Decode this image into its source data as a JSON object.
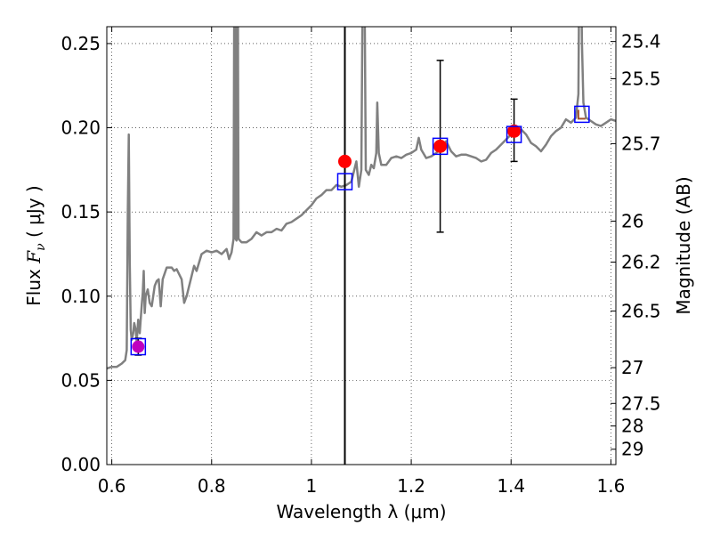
{
  "chart_data": {
    "type": "line",
    "title": "",
    "xlabel": "Wavelength  λ (μm)",
    "ylabel": "Flux  F_ν  ( μJy )",
    "ylabel_display": {
      "prefix": "Flux  ",
      "var": "F",
      "sub": "ν",
      "suffix": "  ( μJy )"
    },
    "y2label": "Magnitude (AB)",
    "xlim": [
      0.59,
      1.61
    ],
    "ylim": [
      0.0,
      0.26
    ],
    "grid": true,
    "x_ticks": [
      {
        "value": 0.6,
        "label": "0.6"
      },
      {
        "value": 0.8,
        "label": "0.8"
      },
      {
        "value": 1.0,
        "label": "1"
      },
      {
        "value": 1.2,
        "label": "1.2"
      },
      {
        "value": 1.4,
        "label": "1.4"
      },
      {
        "value": 1.6,
        "label": "1.6"
      }
    ],
    "y_ticks": [
      {
        "value": 0.0,
        "label": "0.00"
      },
      {
        "value": 0.05,
        "label": "0.05"
      },
      {
        "value": 0.1,
        "label": "0.10"
      },
      {
        "value": 0.15,
        "label": "0.15"
      },
      {
        "value": 0.2,
        "label": "0.20"
      },
      {
        "value": 0.25,
        "label": "0.25"
      }
    ],
    "y2_ticks": [
      {
        "mag": 25.4,
        "label": "25.4"
      },
      {
        "mag": 25.5,
        "label": "25.5"
      },
      {
        "mag": 25.7,
        "label": "25.7"
      },
      {
        "mag": 26.0,
        "label": "26"
      },
      {
        "mag": 26.2,
        "label": "26.2"
      },
      {
        "mag": 26.5,
        "label": "26.5"
      },
      {
        "mag": 27.0,
        "label": "27"
      },
      {
        "mag": 27.5,
        "label": "27.5"
      },
      {
        "mag": 28.0,
        "label": "28"
      },
      {
        "mag": 29.0,
        "label": "29"
      }
    ],
    "vertical_line_x": 1.067,
    "spectrum": {
      "color": "#808080",
      "points": [
        [
          0.59,
          0.057
        ],
        [
          0.6,
          0.058
        ],
        [
          0.61,
          0.058
        ],
        [
          0.62,
          0.06
        ],
        [
          0.627,
          0.062
        ],
        [
          0.63,
          0.068
        ],
        [
          0.632,
          0.15
        ],
        [
          0.634,
          0.196
        ],
        [
          0.636,
          0.12
        ],
        [
          0.638,
          0.08
        ],
        [
          0.64,
          0.074
        ],
        [
          0.643,
          0.078
        ],
        [
          0.645,
          0.084
        ],
        [
          0.648,
          0.08
        ],
        [
          0.65,
          0.073
        ],
        [
          0.653,
          0.086
        ],
        [
          0.656,
          0.078
        ],
        [
          0.66,
          0.095
        ],
        [
          0.662,
          0.102
        ],
        [
          0.664,
          0.115
        ],
        [
          0.666,
          0.09
        ],
        [
          0.668,
          0.1
        ],
        [
          0.672,
          0.104
        ],
        [
          0.676,
          0.096
        ],
        [
          0.68,
          0.094
        ],
        [
          0.686,
          0.106
        ],
        [
          0.69,
          0.109
        ],
        [
          0.694,
          0.11
        ],
        [
          0.698,
          0.094
        ],
        [
          0.702,
          0.11
        ],
        [
          0.71,
          0.117
        ],
        [
          0.72,
          0.117
        ],
        [
          0.725,
          0.115
        ],
        [
          0.73,
          0.116
        ],
        [
          0.74,
          0.11
        ],
        [
          0.745,
          0.096
        ],
        [
          0.75,
          0.1
        ],
        [
          0.76,
          0.112
        ],
        [
          0.765,
          0.118
        ],
        [
          0.77,
          0.115
        ],
        [
          0.78,
          0.125
        ],
        [
          0.79,
          0.127
        ],
        [
          0.8,
          0.126
        ],
        [
          0.81,
          0.127
        ],
        [
          0.82,
          0.125
        ],
        [
          0.83,
          0.128
        ],
        [
          0.835,
          0.122
        ],
        [
          0.84,
          0.126
        ],
        [
          0.844,
          0.134
        ],
        [
          0.846,
          0.35
        ],
        [
          0.848,
          0.134
        ],
        [
          0.85,
          0.133
        ],
        [
          0.852,
          0.35
        ],
        [
          0.854,
          0.134
        ],
        [
          0.86,
          0.132
        ],
        [
          0.87,
          0.132
        ],
        [
          0.88,
          0.134
        ],
        [
          0.89,
          0.138
        ],
        [
          0.9,
          0.136
        ],
        [
          0.91,
          0.138
        ],
        [
          0.92,
          0.138
        ],
        [
          0.93,
          0.14
        ],
        [
          0.94,
          0.139
        ],
        [
          0.95,
          0.143
        ],
        [
          0.96,
          0.144
        ],
        [
          0.97,
          0.146
        ],
        [
          0.98,
          0.148
        ],
        [
          0.99,
          0.151
        ],
        [
          1.0,
          0.154
        ],
        [
          1.01,
          0.158
        ],
        [
          1.02,
          0.16
        ],
        [
          1.03,
          0.163
        ],
        [
          1.04,
          0.163
        ],
        [
          1.05,
          0.166
        ],
        [
          1.06,
          0.165
        ],
        [
          1.07,
          0.166
        ],
        [
          1.08,
          0.168
        ],
        [
          1.09,
          0.18
        ],
        [
          1.095,
          0.165
        ],
        [
          1.1,
          0.175
        ],
        [
          1.103,
          0.3
        ],
        [
          1.106,
          0.3
        ],
        [
          1.109,
          0.175
        ],
        [
          1.115,
          0.172
        ],
        [
          1.12,
          0.178
        ],
        [
          1.125,
          0.176
        ],
        [
          1.13,
          0.185
        ],
        [
          1.132,
          0.215
        ],
        [
          1.135,
          0.185
        ],
        [
          1.14,
          0.178
        ],
        [
          1.15,
          0.178
        ],
        [
          1.16,
          0.182
        ],
        [
          1.17,
          0.183
        ],
        [
          1.18,
          0.182
        ],
        [
          1.19,
          0.184
        ],
        [
          1.2,
          0.185
        ],
        [
          1.21,
          0.187
        ],
        [
          1.215,
          0.194
        ],
        [
          1.22,
          0.187
        ],
        [
          1.23,
          0.182
        ],
        [
          1.24,
          0.183
        ],
        [
          1.25,
          0.185
        ],
        [
          1.26,
          0.188
        ],
        [
          1.27,
          0.192
        ],
        [
          1.28,
          0.186
        ],
        [
          1.29,
          0.183
        ],
        [
          1.3,
          0.184
        ],
        [
          1.31,
          0.184
        ],
        [
          1.32,
          0.183
        ],
        [
          1.33,
          0.182
        ],
        [
          1.34,
          0.18
        ],
        [
          1.35,
          0.181
        ],
        [
          1.36,
          0.185
        ],
        [
          1.37,
          0.187
        ],
        [
          1.38,
          0.19
        ],
        [
          1.39,
          0.193
        ],
        [
          1.4,
          0.196
        ],
        [
          1.41,
          0.198
        ],
        [
          1.42,
          0.199
        ],
        [
          1.43,
          0.196
        ],
        [
          1.44,
          0.191
        ],
        [
          1.45,
          0.189
        ],
        [
          1.46,
          0.186
        ],
        [
          1.47,
          0.19
        ],
        [
          1.48,
          0.195
        ],
        [
          1.49,
          0.198
        ],
        [
          1.5,
          0.2
        ],
        [
          1.51,
          0.205
        ],
        [
          1.52,
          0.203
        ],
        [
          1.53,
          0.206
        ],
        [
          1.535,
          0.22
        ],
        [
          1.538,
          0.35
        ],
        [
          1.542,
          0.25
        ],
        [
          1.545,
          0.215
        ],
        [
          1.55,
          0.206
        ],
        [
          1.56,
          0.204
        ],
        [
          1.57,
          0.202
        ],
        [
          1.58,
          0.201
        ],
        [
          1.59,
          0.203
        ],
        [
          1.6,
          0.205
        ],
        [
          1.61,
          0.204
        ]
      ]
    },
    "model_points": {
      "marker": "open-square",
      "color": "#0000ff",
      "points": [
        {
          "x": 0.653,
          "y": 0.07
        },
        {
          "x": 1.067,
          "y": 0.168
        },
        {
          "x": 1.258,
          "y": 0.189
        },
        {
          "x": 1.406,
          "y": 0.196
        },
        {
          "x": 1.542,
          "y": 0.208
        }
      ]
    },
    "observed_points": {
      "marker": "filled-circle",
      "color": "#ff0000",
      "points": [
        {
          "x": 1.067,
          "y": 0.18
        },
        {
          "x": 1.258,
          "y": 0.189
        },
        {
          "x": 1.406,
          "y": 0.198
        }
      ]
    },
    "magenta_points": {
      "marker": "filled-circle",
      "color": "#bf00bf",
      "points": [
        {
          "x": 0.653,
          "y": 0.07
        }
      ]
    },
    "error_bars": [
      {
        "x": 0.653,
        "lo": 0.065,
        "hi": 0.075
      },
      {
        "x": 1.258,
        "lo": 0.138,
        "hi": 0.24
      },
      {
        "x": 1.406,
        "lo": 0.18,
        "hi": 0.217
      }
    ],
    "upper_limit_marker": {
      "x": 1.542,
      "y": 0.208,
      "color": "#a0522d"
    }
  }
}
